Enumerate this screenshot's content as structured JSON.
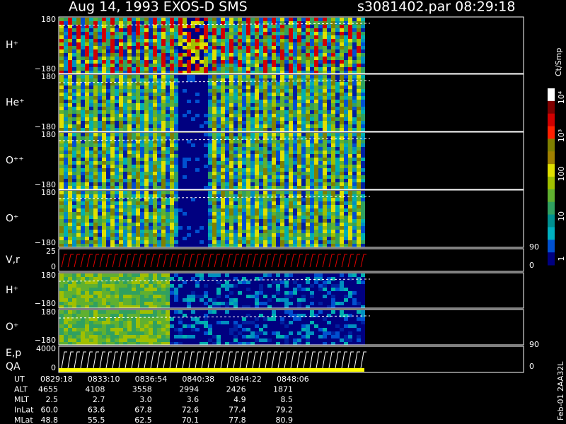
{
  "header": {
    "title": "Aug 14, 1993   EXOS-D SMS",
    "file": "s3081402.par  08:29:18"
  },
  "panels": [
    {
      "label": "H⁺",
      "top": "180",
      "bottom": "−180"
    },
    {
      "label": "He⁺",
      "top": "180",
      "bottom": "−180"
    },
    {
      "label": "O⁺⁺",
      "top": "180",
      "bottom": "−180"
    },
    {
      "label": "O⁺",
      "top": "180",
      "bottom": "−180"
    },
    {
      "label": "V,r",
      "top": "25",
      "bottom": "0",
      "right_top": "90",
      "right_bottom": "0"
    },
    {
      "label": "H⁺",
      "top": "180",
      "bottom": "−180"
    },
    {
      "label": "O⁺",
      "top": "180",
      "bottom": "−180"
    },
    {
      "label": "E,p",
      "label2": "QA",
      "top": "4000",
      "bottom": "0",
      "right_top": "90",
      "right_bottom": "0"
    }
  ],
  "colorbar": {
    "unit": "Ct/Smp",
    "ticks": [
      "10⁴",
      "10³",
      "100",
      "10",
      "1"
    ]
  },
  "footer": {
    "rows": [
      {
        "label": "UT",
        "values": [
          "0829:18",
          "0833:10",
          "0836:54",
          "0840:38",
          "0844:22",
          "0848:06"
        ]
      },
      {
        "label": "ALT",
        "values": [
          "4655",
          "4108",
          "3558",
          "2994",
          "2426",
          "1871"
        ]
      },
      {
        "label": "MLT",
        "values": [
          "2.5",
          "2.7",
          "3.0",
          "3.6",
          "4.9",
          "8.5"
        ]
      },
      {
        "label": "InLat",
        "values": [
          "60.0",
          "63.6",
          "67.8",
          "72.6",
          "77.4",
          "79.2"
        ]
      },
      {
        "label": "MLat",
        "values": [
          "48.8",
          "55.5",
          "62.5",
          "70.1",
          "77.8",
          "80.9"
        ]
      }
    ],
    "stamp": "Feb-01 2AA32L"
  }
}
